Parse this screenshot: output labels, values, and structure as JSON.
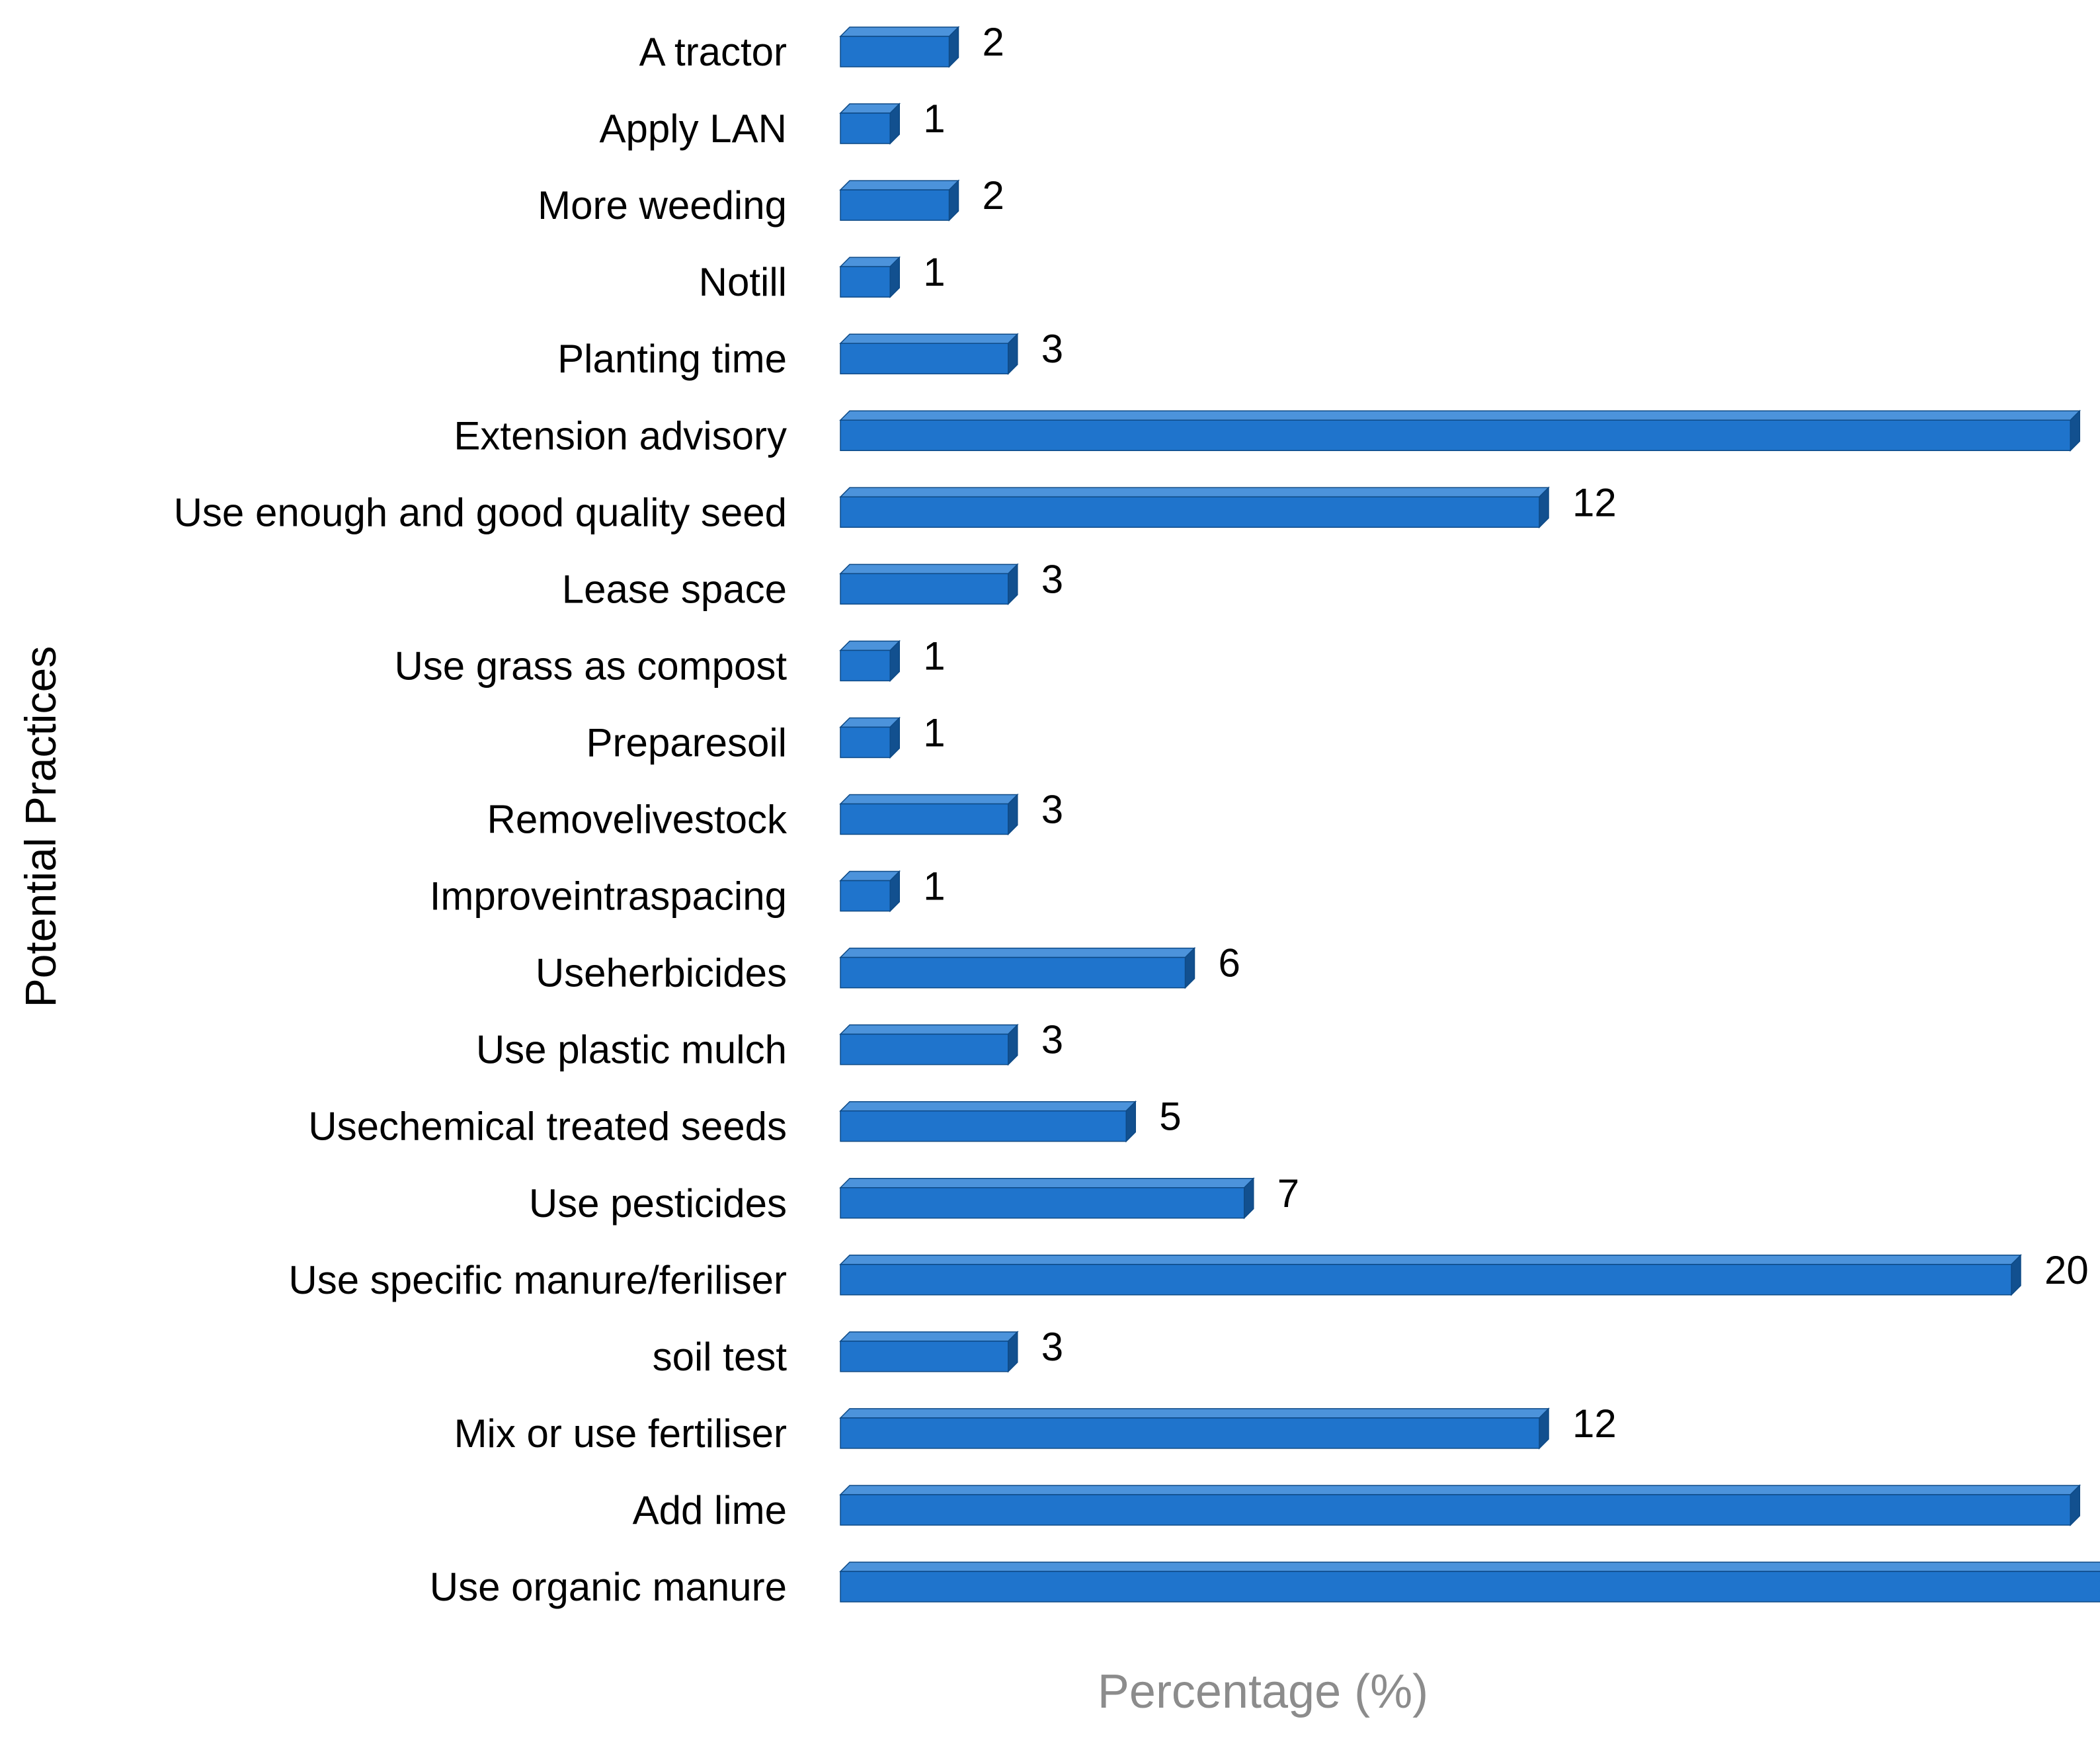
{
  "chart_data": {
    "type": "bar",
    "orientation": "horizontal",
    "bar_style": "3d",
    "xlabel": "Percentage (%)",
    "ylabel": "Potential Practices",
    "xlim": [
      0,
      24
    ],
    "grid": false,
    "legend": "none",
    "data_labels": true,
    "colors": {
      "bar_front": "#1F74CC",
      "bar_top": "#4C93DB",
      "bar_side": "#12508F",
      "bar_outline": "#0E4A86",
      "category_text": "#000000",
      "value_text": "#000000",
      "ylabel_text": "#000000",
      "xlabel_text": "#8C8C8C"
    },
    "categories": [
      "A tractor",
      "Apply LAN",
      "More weeding",
      "Notill",
      "Planting time",
      "Extension advisory",
      "Use enough and good quality seed",
      "Lease space",
      "Use grass as compost",
      "Preparesoil",
      "Removelivestock",
      "Improveintraspacing",
      "Useherbicides",
      "Use plastic mulch",
      "Usechemical treated seeds",
      "Use pesticides",
      "Use specific manure/feriliser",
      "soil test",
      "Mix or use fertiliser",
      "Add lime",
      "Use organic manure"
    ],
    "values": [
      2,
      1,
      2,
      1,
      3,
      21,
      12,
      3,
      1,
      1,
      3,
      1,
      6,
      3,
      5,
      7,
      20,
      3,
      12,
      21,
      24
    ]
  }
}
